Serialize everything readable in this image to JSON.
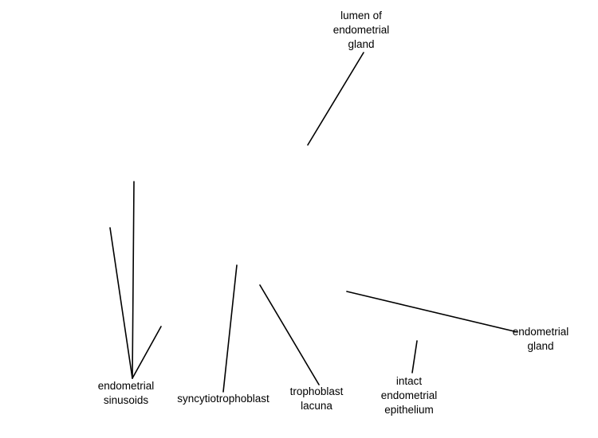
{
  "labels": {
    "lumen": [
      "lumen of",
      "endometrial",
      "gland"
    ],
    "sinusoids": [
      "endometrial",
      "sinusoids"
    ],
    "syncytiotrophoblast": [
      "syncytiotrophoblast"
    ],
    "lacuna": [
      "trophoblast",
      "lacuna"
    ],
    "epithelium": [
      "intact",
      "endometrial",
      "epithelium"
    ],
    "gland": [
      "endometrial",
      "gland"
    ]
  }
}
